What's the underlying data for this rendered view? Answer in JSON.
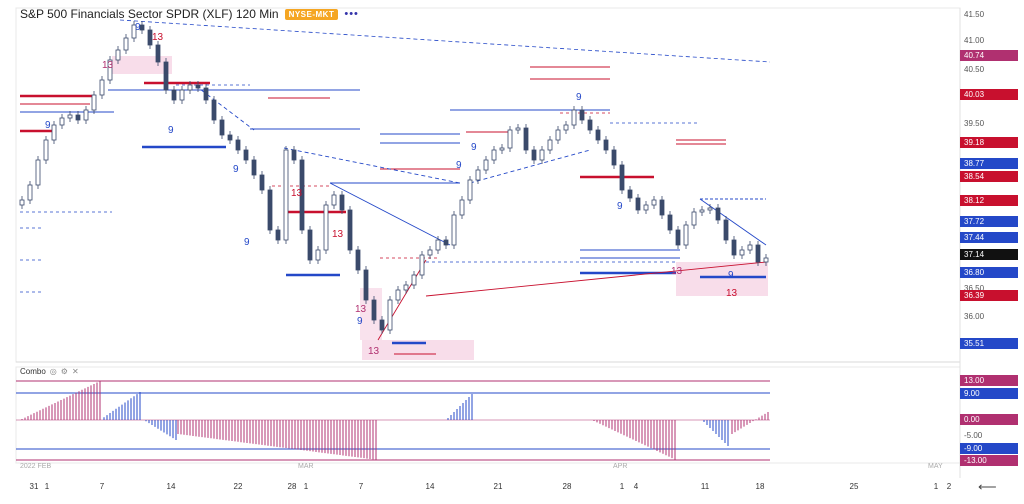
{
  "header": {
    "title": "S&P 500 Financials Sector SPDR (XLF) 120 Min",
    "exchange_badge": "NYSE-MKT",
    "menu_label": "•••"
  },
  "indicator": {
    "name": "Combo",
    "icons": [
      "eye-icon",
      "gear-icon",
      "close-icon"
    ],
    "eye_glyph": "◎",
    "gear_glyph": "⚙",
    "close_glyph": "✕"
  },
  "price_axis": {
    "ticks": [
      "41.50",
      "41.00",
      "40.50",
      "39.50",
      "36.50",
      "36.00"
    ],
    "labels": [
      {
        "text": "40.74",
        "color": "#b03070"
      },
      {
        "text": "40.03",
        "color": "#c8102e"
      },
      {
        "text": "39.18",
        "color": "#c8102e"
      },
      {
        "text": "38.77",
        "color": "#2448c8"
      },
      {
        "text": "38.54",
        "color": "#c8102e"
      },
      {
        "text": "38.12",
        "color": "#c8102e"
      },
      {
        "text": "37.72",
        "color": "#2448c8"
      },
      {
        "text": "37.44",
        "color": "#2448c8"
      },
      {
        "text": "37.14",
        "color": "#111111"
      },
      {
        "text": "36.80",
        "color": "#2448c8"
      },
      {
        "text": "36.39",
        "color": "#c8102e"
      },
      {
        "text": "35.51",
        "color": "#2448c8"
      }
    ]
  },
  "indicator_axis": {
    "labels": [
      {
        "text": "13.00",
        "color": "#b03070"
      },
      {
        "text": "9.00",
        "color": "#2448c8"
      },
      {
        "text": "0.00",
        "color": "#b03070"
      },
      {
        "text": "-5.00",
        "color": ""
      },
      {
        "text": "-9.00",
        "color": "#2448c8"
      },
      {
        "text": "-13.00",
        "color": "#b03070"
      }
    ]
  },
  "x_axis": {
    "month_labels": [
      "2022 FEB",
      "MAR",
      "APR",
      "MAY"
    ],
    "day_ticks": [
      "31",
      "1",
      "7",
      "14",
      "22",
      "28",
      "1",
      "7",
      "14",
      "21",
      "28",
      "1",
      "4",
      "11",
      "18",
      "25",
      "1",
      "2"
    ]
  },
  "chart_annotations": {
    "td_counts": [
      "9",
      "13",
      "13",
      "9",
      "9",
      "9",
      "13",
      "9",
      "13",
      "9",
      "13",
      "13",
      "9",
      "13",
      "9",
      "9",
      "9",
      "13",
      "9"
    ]
  },
  "colors": {
    "bearish_setup": "#2448c8",
    "bullish_setup": "#c8102e",
    "countdown": "#b03070",
    "candle": "#3b4a6b",
    "pink_zone": "#f4c6dc"
  },
  "back_label": "⟵"
}
